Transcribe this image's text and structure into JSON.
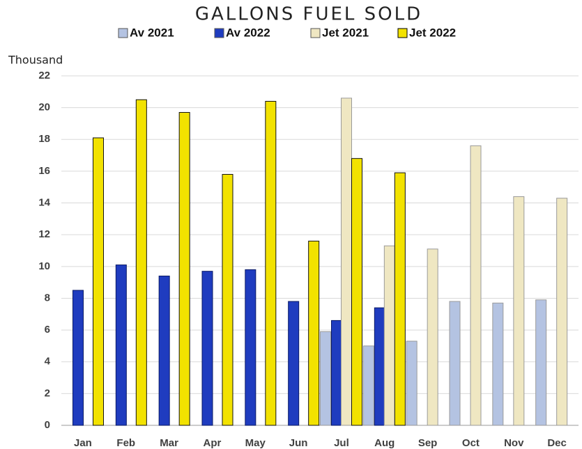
{
  "chart_data": {
    "type": "bar",
    "title": "GALLONS FUEL SOLD",
    "y_label": "Thousand",
    "categories": [
      "Jan",
      "Feb",
      "Mar",
      "Apr",
      "May",
      "Jun",
      "Jul",
      "Aug",
      "Sep",
      "Oct",
      "Nov",
      "Dec"
    ],
    "series": [
      {
        "name": "Av 2021",
        "color": "#b4c3e2",
        "values": [
          null,
          null,
          null,
          null,
          null,
          null,
          5.9,
          5.0,
          5.3,
          7.8,
          7.7,
          7.9
        ]
      },
      {
        "name": "Av 2022",
        "color": "#1f3cbf",
        "values": [
          8.5,
          10.1,
          9.4,
          9.7,
          9.8,
          7.8,
          6.6,
          7.4,
          null,
          null,
          null,
          null
        ]
      },
      {
        "name": "Jet 2021",
        "color": "#efe7c2",
        "values": [
          null,
          null,
          null,
          null,
          null,
          null,
          20.6,
          11.3,
          11.1,
          17.6,
          14.4,
          14.3
        ]
      },
      {
        "name": "Jet 2022",
        "color": "#f2e200",
        "values": [
          18.1,
          20.5,
          19.7,
          15.8,
          20.4,
          11.6,
          16.8,
          15.9,
          null,
          null,
          null,
          null
        ]
      }
    ],
    "ylim": [
      0,
      22
    ],
    "yticks": [
      0,
      2,
      4,
      6,
      8,
      10,
      12,
      14,
      16,
      18,
      20,
      22
    ],
    "grid": true,
    "legend": "top"
  }
}
